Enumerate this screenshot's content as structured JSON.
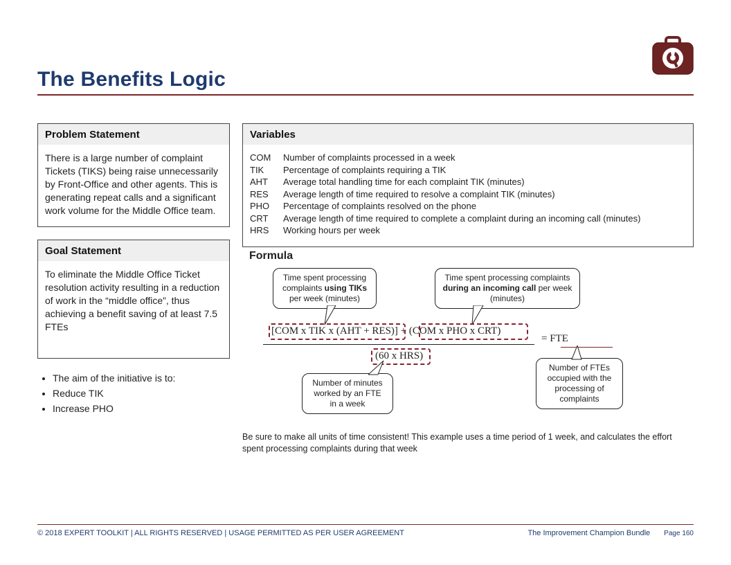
{
  "title": "The Benefits Logic",
  "colors": {
    "title": "#1f3a6e",
    "accent_rule": "#7a2626",
    "panel_header_bg": "#efefef",
    "panel_border": "#444444",
    "text": "#222222",
    "dashed_border": "#882233",
    "logo_fill": "#6e2323",
    "logo_stroke": "#5a1c1c"
  },
  "logo": {
    "name": "toolkit-icon",
    "description": "briefcase with wrench in circle"
  },
  "panels": {
    "problem": {
      "heading": "Problem Statement",
      "body": "There is a large number of complaint Tickets (TIKS) being raise unnecessarily by Front-Office and other agents. This is generating repeat calls and a significant work volume for the Middle Office team."
    },
    "goal": {
      "heading": "Goal Statement",
      "body": "To eliminate the Middle Office Ticket resolution activity resulting in a reduction of work in the “middle office”, thus achieving a benefit saving of at least 7.5 FTEs"
    },
    "variables": {
      "heading": "Variables",
      "rows": [
        {
          "key": "COM",
          "desc": "Number of complaints processed in a week"
        },
        {
          "key": "TIK",
          "desc": "Percentage of complaints requiring a TIK"
        },
        {
          "key": "AHT",
          "desc": "Average total handling time for each complaint TIK (minutes)"
        },
        {
          "key": "RES",
          "desc": "Average length of time required to resolve a complaint TIK (minutes)"
        },
        {
          "key": "PHO",
          "desc": "Percentage of complaints resolved on the phone"
        },
        {
          "key": "CRT",
          "desc": "Average length of time required to complete a complaint during an incoming call (minutes)"
        },
        {
          "key": "HRS",
          "desc": "Working hours per week"
        }
      ]
    }
  },
  "bullets": {
    "intro": "The aim of the initiative is to:",
    "items": [
      "Reduce TIK",
      "Increase PHO"
    ]
  },
  "formula": {
    "title": "Formula",
    "callouts": {
      "tiks": {
        "pre": "Time spent processing complaints ",
        "bold": "using TIKs",
        "post": " per week (minutes)"
      },
      "call": {
        "pre": "Time spent processing complaints ",
        "bold": "during an incoming call",
        "post": " per week (minutes)"
      },
      "minutes": {
        "text": "Number of minutes worked by an FTE in a week"
      },
      "fte": {
        "text": "Number of FTEs occupied with the processing of complaints"
      }
    },
    "expression": {
      "left": "[COM x TIK x (AHT + RES)]",
      "plus": " + ",
      "right": "(COM x PHO x CRT)",
      "denom": "(60 x HRS)",
      "equals": "=  FTE"
    },
    "note": "Be sure to make all units of time consistent! This example uses a time period of 1 week, and calculates the effort spent processing complaints during that week"
  },
  "footer": {
    "left": "© 2018 EXPERT TOOLKIT | ALL RIGHTS RESERVED | USAGE PERMITTED AS PER USER AGREEMENT",
    "right": "The Improvement Champion Bundle",
    "page_label": "Page",
    "page_num": "160"
  }
}
